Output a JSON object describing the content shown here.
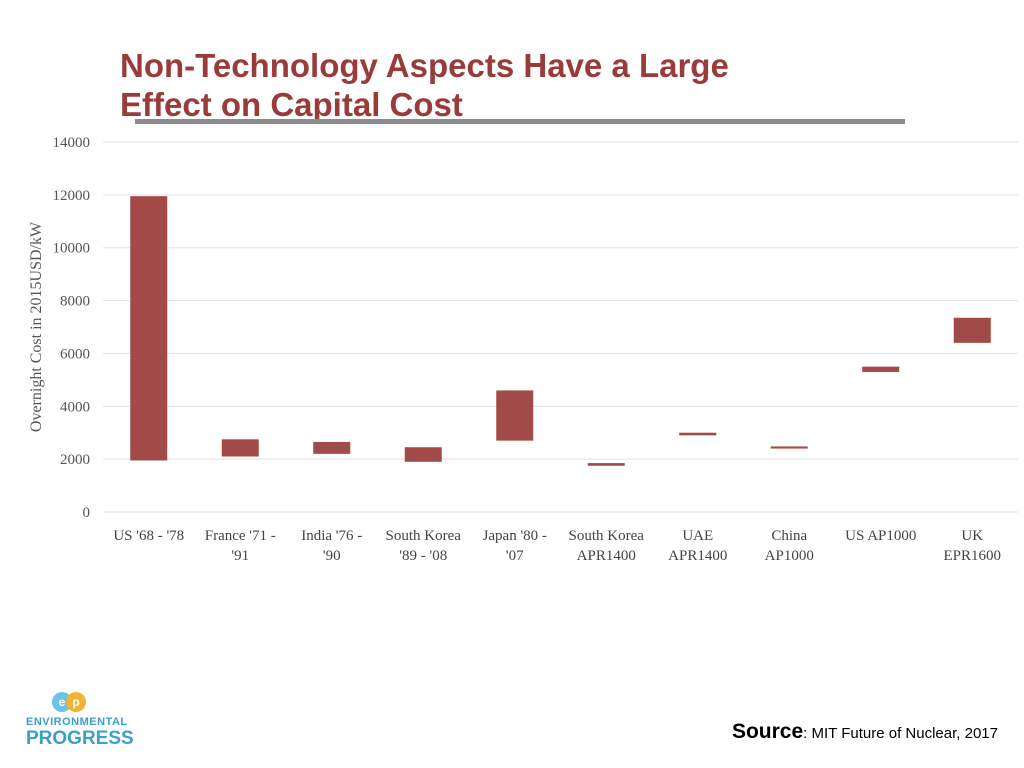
{
  "slide": {
    "title_line1": "Non-Technology Aspects Have a Large",
    "title_line2": "Effect on Capital Cost",
    "source_label": "Source",
    "source_text": ": MIT Future of Nuclear, 2017",
    "logo_line1": "ENVIRONMENTAL",
    "logo_line2": "PROGRESS",
    "title_color": "#9a3b3a",
    "logo_color": "#3aa0c9"
  },
  "chart_data": {
    "type": "bar",
    "subtype": "floating-range",
    "ylabel": "Overnight Cost in 2015USD/kW",
    "xlabel": "",
    "ylim": [
      0,
      14000
    ],
    "yticks": [
      0,
      2000,
      4000,
      6000,
      8000,
      10000,
      12000,
      14000
    ],
    "grid": true,
    "bar_color": "#a14a47",
    "categories": [
      [
        "US '68 - '78"
      ],
      [
        "France '71 -",
        "'91"
      ],
      [
        "India '76 -",
        "'90"
      ],
      [
        "South Korea",
        "'89 - '08"
      ],
      [
        "Japan '80 -",
        "'07"
      ],
      [
        "South Korea",
        "APR1400"
      ],
      [
        "UAE",
        "APR1400"
      ],
      [
        "China",
        "AP1000"
      ],
      [
        "US AP1000"
      ],
      [
        "UK",
        "EPR1600"
      ]
    ],
    "ranges": [
      [
        1950,
        11950
      ],
      [
        2100,
        2750
      ],
      [
        2200,
        2650
      ],
      [
        1900,
        2450
      ],
      [
        2700,
        4600
      ],
      [
        1750,
        1850
      ],
      [
        2900,
        3000
      ],
      [
        2400,
        2480
      ],
      [
        5300,
        5500
      ],
      [
        6400,
        7350
      ]
    ]
  }
}
